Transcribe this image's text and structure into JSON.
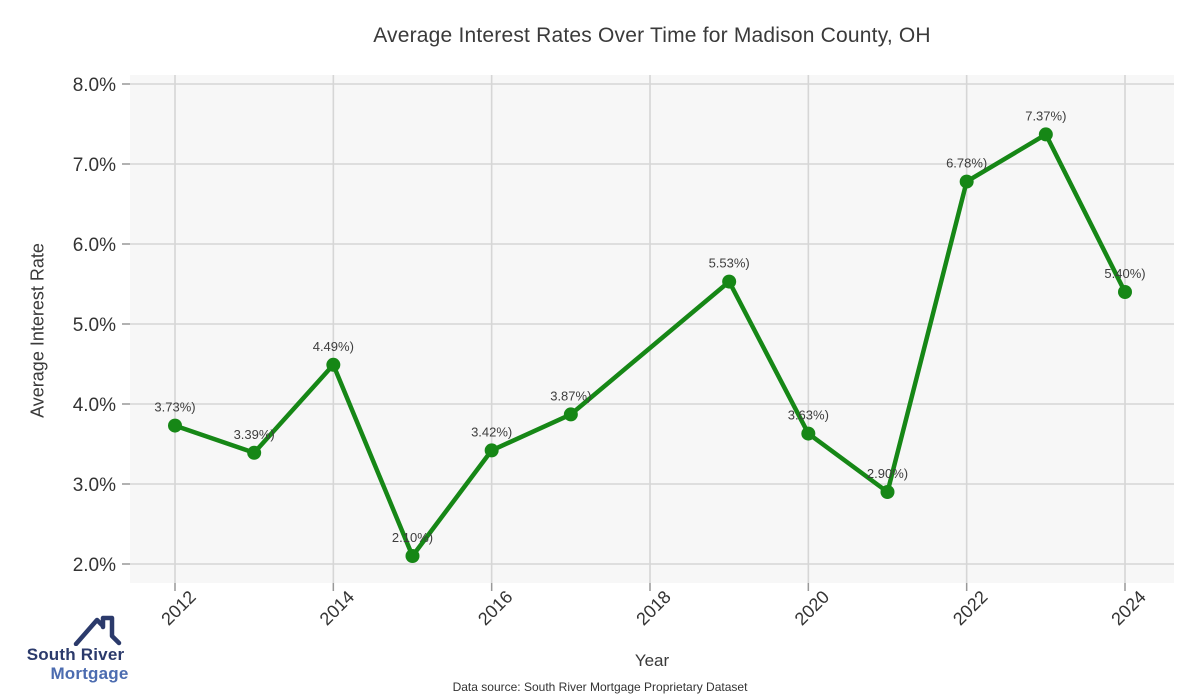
{
  "title": "Average Interest Rates Over Time for Madison County, OH",
  "chart_data": {
    "type": "line",
    "x": [
      2012,
      2013,
      2014,
      2015,
      2016,
      2017,
      2019,
      2020,
      2021,
      2022,
      2023,
      2024
    ],
    "values": [
      3.73,
      3.39,
      4.49,
      2.1,
      3.42,
      3.87,
      5.53,
      3.63,
      2.9,
      6.78,
      7.37,
      5.4
    ],
    "point_labels": [
      "3.73%)",
      "3.39%)",
      "4.49%)",
      "2.10%)",
      "3.42%)",
      "3.87%)",
      "5.53%)",
      "3.63%)",
      "2.90%)",
      "6.78%)",
      "7.37%)",
      "5.40%)"
    ],
    "title": "Average Interest Rates Over Time for Madison County, OH",
    "xlabel": "Year",
    "ylabel": "Average Interest Rate",
    "ylim": [
      2.0,
      8.0
    ],
    "yticks": [
      8.0,
      7.0,
      6.0,
      5.0,
      4.0,
      3.0,
      2.0
    ],
    "ytick_labels": [
      "8.0%",
      "7.0%",
      "6.0%",
      "5.0%",
      "4.0%",
      "3.0%",
      "2.0%"
    ],
    "xticks": [
      2012,
      2014,
      2016,
      2018,
      2020,
      2022,
      2024
    ],
    "xtick_labels": [
      "2012",
      "2014",
      "2016",
      "2018",
      "2020",
      "2022",
      "2024"
    ],
    "grid": true,
    "legend": false,
    "line_color": "#168716",
    "marker_color": "#168716",
    "plot_bg_color": "#f7f7f7",
    "grid_color": "#d6d6d6",
    "tick_color": "#999999",
    "label_color": "#3d3d3d"
  },
  "logo": {
    "line1": "South River",
    "line2": "Mortgage",
    "line1_color": "#2b3a6b",
    "line2_color": "#4c6cb0",
    "icon_color": "#2b3a6b"
  },
  "footer": "Data source: South River Mortgage Proprietary Dataset"
}
